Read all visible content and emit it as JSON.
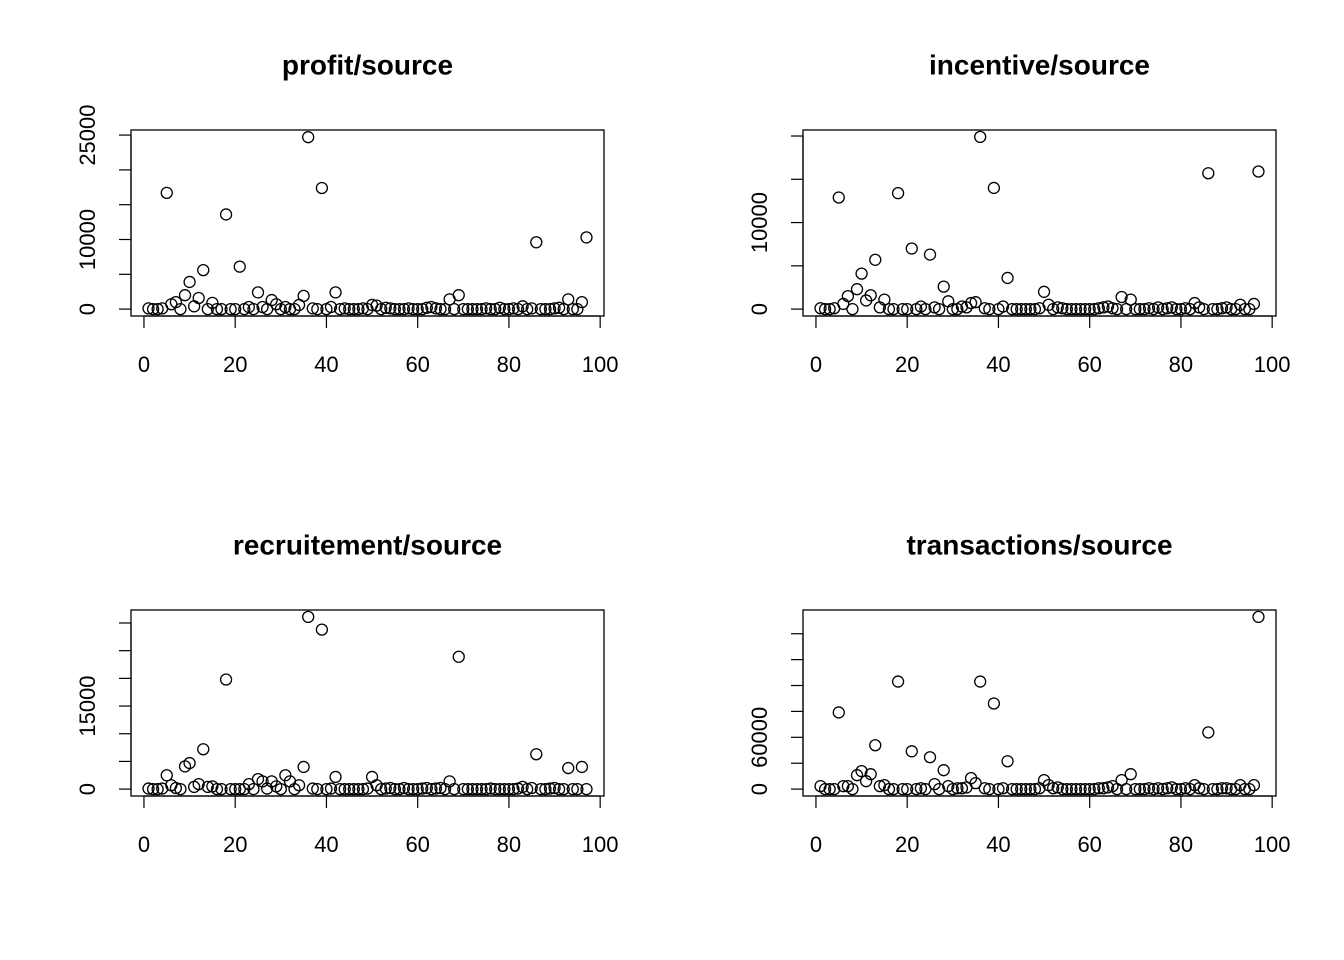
{
  "chart_data": [
    {
      "type": "scatter",
      "title": "profit/source",
      "x": [
        1,
        2,
        3,
        4,
        5,
        6,
        7,
        8,
        9,
        10,
        11,
        12,
        13,
        14,
        15,
        16,
        17,
        18,
        19,
        20,
        21,
        22,
        23,
        24,
        25,
        26,
        27,
        28,
        29,
        30,
        31,
        32,
        33,
        34,
        35,
        36,
        37,
        38,
        39,
        40,
        41,
        42,
        43,
        44,
        45,
        46,
        47,
        48,
        49,
        50,
        51,
        52,
        53,
        54,
        55,
        56,
        57,
        58,
        59,
        60,
        61,
        62,
        63,
        64,
        65,
        66,
        67,
        68,
        69,
        70,
        71,
        72,
        73,
        74,
        75,
        76,
        77,
        78,
        79,
        80,
        81,
        82,
        83,
        84,
        85,
        86,
        87,
        88,
        89,
        90,
        91,
        92,
        93,
        94,
        95,
        96,
        97
      ],
      "values": [
        100,
        0,
        0,
        100,
        16700,
        700,
        1000,
        0,
        2000,
        3900,
        400,
        1600,
        5600,
        0,
        900,
        0,
        0,
        13600,
        0,
        0,
        6100,
        0,
        300,
        0,
        2400,
        300,
        0,
        1300,
        700,
        0,
        300,
        0,
        0,
        600,
        1900,
        24700,
        100,
        0,
        17400,
        0,
        300,
        2400,
        0,
        100,
        0,
        0,
        0,
        100,
        0,
        600,
        500,
        0,
        200,
        100,
        0,
        0,
        0,
        100,
        0,
        0,
        0,
        200,
        300,
        100,
        0,
        0,
        1400,
        0,
        2000,
        0,
        0,
        0,
        0,
        0,
        100,
        0,
        0,
        200,
        0,
        0,
        100,
        0,
        400,
        0,
        100,
        9600,
        0,
        0,
        0,
        100,
        200,
        0,
        1400,
        0,
        0,
        1000,
        10300
      ],
      "xlim": [
        -2.84,
        100.84
      ],
      "xticks": [
        0,
        20,
        40,
        60,
        80,
        100
      ],
      "ylim": [
        -990,
        25730
      ],
      "yticks": [
        0,
        {
          "value": 5000,
          "label": null
        },
        10000,
        {
          "value": 15000,
          "label": null
        },
        {
          "value": 20000,
          "label": null
        },
        25000
      ]
    },
    {
      "type": "scatter",
      "title": "incentive/source",
      "x": [
        1,
        2,
        3,
        4,
        5,
        6,
        7,
        8,
        9,
        10,
        11,
        12,
        13,
        14,
        15,
        16,
        17,
        18,
        19,
        20,
        21,
        22,
        23,
        24,
        25,
        26,
        27,
        28,
        29,
        30,
        31,
        32,
        33,
        34,
        35,
        36,
        37,
        38,
        39,
        40,
        41,
        42,
        43,
        44,
        45,
        46,
        47,
        48,
        49,
        50,
        51,
        52,
        53,
        54,
        55,
        56,
        57,
        58,
        59,
        60,
        61,
        62,
        63,
        64,
        65,
        66,
        67,
        68,
        69,
        70,
        71,
        72,
        73,
        74,
        75,
        76,
        77,
        78,
        79,
        80,
        81,
        82,
        83,
        84,
        85,
        86,
        87,
        88,
        89,
        90,
        91,
        92,
        93,
        94,
        95,
        96,
        97
      ],
      "values": [
        100,
        0,
        0,
        100,
        12900,
        600,
        1500,
        0,
        2300,
        4100,
        1000,
        1600,
        5700,
        200,
        1100,
        0,
        0,
        13400,
        0,
        0,
        7000,
        0,
        300,
        0,
        6300,
        200,
        0,
        2600,
        900,
        0,
        0,
        300,
        200,
        700,
        800,
        19900,
        100,
        0,
        14000,
        0,
        300,
        3600,
        0,
        0,
        0,
        0,
        0,
        0,
        100,
        2000,
        500,
        0,
        200,
        100,
        0,
        0,
        0,
        0,
        0,
        0,
        0,
        100,
        200,
        300,
        100,
        0,
        1400,
        0,
        1100,
        0,
        0,
        0,
        100,
        0,
        200,
        0,
        100,
        200,
        0,
        0,
        100,
        0,
        700,
        200,
        0,
        15700,
        0,
        0,
        100,
        200,
        0,
        0,
        500,
        0,
        0,
        600,
        15900
      ],
      "xlim": [
        -2.84,
        100.84
      ],
      "xticks": [
        0,
        20,
        40,
        60,
        80,
        100
      ],
      "ylim": [
        -796,
        20696
      ],
      "yticks": [
        0,
        {
          "value": 5000,
          "label": null
        },
        10000,
        {
          "value": 15000,
          "label": null
        },
        {
          "value": 20000,
          "label": null
        }
      ]
    },
    {
      "type": "scatter",
      "title": "recruitement/source",
      "x": [
        1,
        2,
        3,
        4,
        5,
        6,
        7,
        8,
        9,
        10,
        11,
        12,
        13,
        14,
        15,
        16,
        17,
        18,
        19,
        20,
        21,
        22,
        23,
        24,
        25,
        26,
        27,
        28,
        29,
        30,
        31,
        32,
        33,
        34,
        35,
        36,
        37,
        38,
        39,
        40,
        41,
        42,
        43,
        44,
        45,
        46,
        47,
        48,
        49,
        50,
        51,
        52,
        53,
        54,
        55,
        56,
        57,
        58,
        59,
        60,
        61,
        62,
        63,
        64,
        65,
        66,
        67,
        68,
        69,
        70,
        71,
        72,
        73,
        74,
        75,
        76,
        77,
        78,
        79,
        80,
        81,
        82,
        83,
        84,
        85,
        86,
        87,
        88,
        89,
        90,
        91,
        92,
        93,
        94,
        95,
        96,
        97
      ],
      "values": [
        100,
        0,
        0,
        100,
        2500,
        700,
        200,
        0,
        4100,
        4700,
        400,
        900,
        7200,
        400,
        500,
        0,
        0,
        19800,
        0,
        0,
        0,
        0,
        900,
        0,
        1800,
        1400,
        100,
        1400,
        500,
        0,
        2500,
        1400,
        0,
        700,
        4000,
        31100,
        100,
        0,
        28800,
        0,
        100,
        2200,
        0,
        0,
        0,
        0,
        0,
        0,
        100,
        2200,
        700,
        0,
        100,
        200,
        0,
        0,
        200,
        0,
        0,
        0,
        100,
        200,
        0,
        100,
        200,
        0,
        1400,
        0,
        23900,
        0,
        0,
        0,
        0,
        0,
        0,
        100,
        0,
        0,
        0,
        0,
        0,
        100,
        400,
        0,
        200,
        6300,
        0,
        0,
        100,
        200,
        0,
        0,
        3800,
        0,
        0,
        4000,
        0
      ],
      "xlim": [
        -2.84,
        100.84
      ],
      "xticks": [
        0,
        20,
        40,
        60,
        80,
        100
      ],
      "ylim": [
        -1244,
        32344
      ],
      "yticks": [
        0,
        {
          "value": 5000,
          "label": null
        },
        {
          "value": 10000,
          "label": null
        },
        15000,
        {
          "value": 20000,
          "label": null
        },
        {
          "value": 25000,
          "label": null
        },
        {
          "value": 30000,
          "label": null
        }
      ]
    },
    {
      "type": "scatter",
      "title": "transactions/source",
      "x": [
        1,
        2,
        3,
        4,
        5,
        6,
        7,
        8,
        9,
        10,
        11,
        12,
        13,
        14,
        15,
        16,
        17,
        18,
        19,
        20,
        21,
        22,
        23,
        24,
        25,
        26,
        27,
        28,
        29,
        30,
        31,
        32,
        33,
        34,
        35,
        36,
        37,
        38,
        39,
        40,
        41,
        42,
        43,
        44,
        45,
        46,
        47,
        48,
        49,
        50,
        51,
        52,
        53,
        54,
        55,
        56,
        57,
        58,
        59,
        60,
        61,
        62,
        63,
        64,
        65,
        66,
        67,
        68,
        69,
        70,
        71,
        72,
        73,
        74,
        75,
        76,
        77,
        78,
        79,
        80,
        81,
        82,
        83,
        84,
        85,
        86,
        87,
        88,
        89,
        90,
        91,
        92,
        93,
        94,
        95,
        96,
        97
      ],
      "values": [
        3500,
        0,
        0,
        0,
        88800,
        3500,
        3500,
        0,
        16100,
        20800,
        9200,
        17300,
        50800,
        3500,
        4600,
        0,
        0,
        124600,
        0,
        0,
        43800,
        0,
        1000,
        0,
        36900,
        5800,
        0,
        21900,
        3500,
        0,
        1000,
        1000,
        2000,
        12700,
        6900,
        124600,
        1000,
        0,
        99200,
        0,
        1000,
        32300,
        0,
        0,
        0,
        0,
        0,
        0,
        1000,
        10400,
        4600,
        1000,
        2000,
        0,
        0,
        0,
        0,
        0,
        0,
        0,
        0,
        1000,
        1000,
        2000,
        3500,
        0,
        10400,
        0,
        17300,
        0,
        0,
        0,
        1000,
        0,
        1000,
        0,
        1000,
        2000,
        0,
        0,
        1000,
        0,
        4600,
        1000,
        0,
        65700,
        0,
        0,
        1000,
        1000,
        0,
        0,
        4600,
        0,
        0,
        4600,
        199500
      ],
      "xlim": [
        -2.84,
        100.84
      ],
      "xticks": [
        0,
        20,
        40,
        60,
        80,
        100
      ],
      "ylim": [
        -7980,
        207480
      ],
      "yticks": [
        0,
        {
          "value": 30000,
          "label": null
        },
        60000,
        {
          "value": 90000,
          "label": null
        },
        {
          "value": 120000,
          "label": null
        },
        {
          "value": 150000,
          "label": null
        },
        {
          "value": 180000,
          "label": null
        }
      ]
    }
  ]
}
